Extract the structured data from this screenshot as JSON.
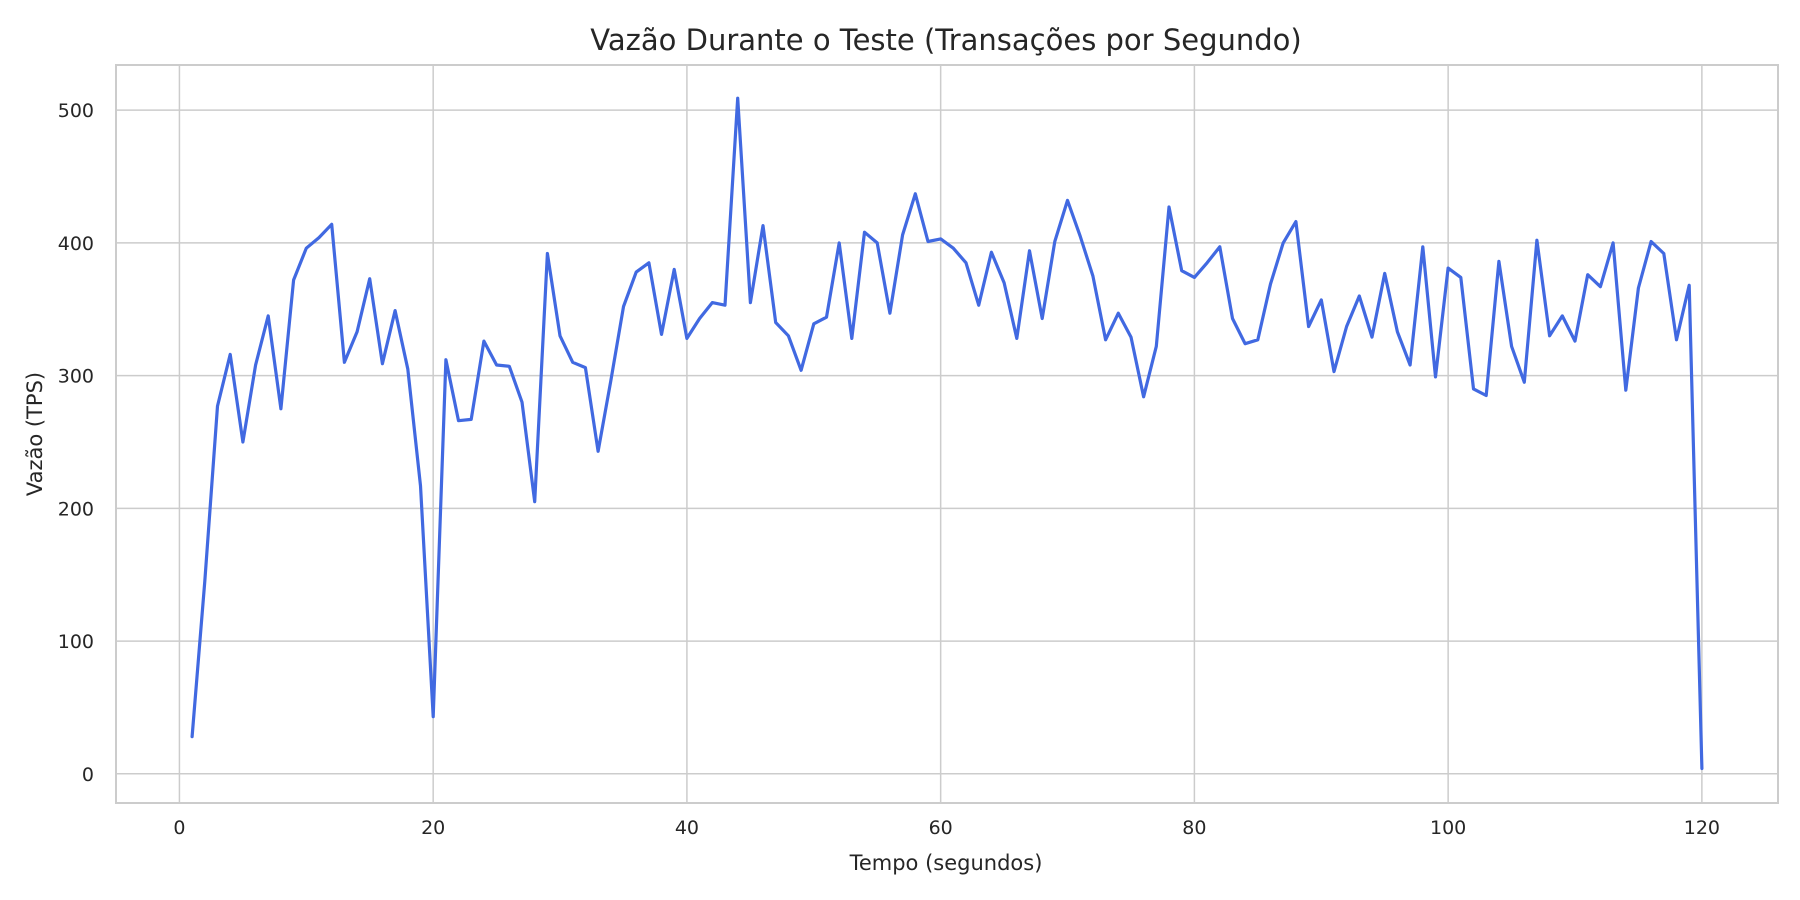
{
  "chart_data": {
    "type": "line",
    "title": "Vazão Durante o Teste (Transações por Segundo)",
    "xlabel": "Tempo (segundos)",
    "ylabel": "Vazão (TPS)",
    "xlim": [
      -5,
      126
    ],
    "ylim": [
      -22,
      534
    ],
    "x_ticks": [
      0,
      20,
      40,
      60,
      80,
      100,
      120
    ],
    "y_ticks": [
      0,
      100,
      200,
      300,
      400,
      500
    ],
    "grid": true,
    "color": "#4169e1",
    "x": [
      1,
      2,
      3,
      4,
      5,
      6,
      7,
      8,
      9,
      10,
      11,
      12,
      13,
      14,
      15,
      16,
      17,
      18,
      19,
      20,
      21,
      22,
      23,
      24,
      25,
      26,
      27,
      28,
      29,
      30,
      31,
      32,
      33,
      34,
      35,
      36,
      37,
      38,
      39,
      40,
      41,
      42,
      43,
      44,
      45,
      46,
      47,
      48,
      49,
      50,
      51,
      52,
      53,
      54,
      55,
      56,
      57,
      58,
      59,
      60,
      61,
      62,
      63,
      64,
      65,
      66,
      67,
      68,
      69,
      70,
      71,
      72,
      73,
      74,
      75,
      76,
      77,
      78,
      79,
      80,
      81,
      82,
      83,
      84,
      85,
      86,
      87,
      88,
      89,
      90,
      91,
      92,
      93,
      94,
      95,
      96,
      97,
      98,
      99,
      100,
      101,
      102,
      103,
      104,
      105,
      106,
      107,
      108,
      109,
      110,
      111,
      112,
      113,
      114,
      115,
      116,
      117,
      118,
      119,
      120
    ],
    "y": [
      28,
      145,
      277,
      316,
      250,
      308,
      345,
      275,
      372,
      396,
      404,
      414,
      310,
      333,
      373,
      309,
      349,
      305,
      217,
      43,
      312,
      266,
      267,
      326,
      308,
      307,
      280,
      205,
      392,
      330,
      310,
      306,
      243,
      296,
      352,
      378,
      385,
      331,
      380,
      328,
      343,
      355,
      353,
      509,
      355,
      413,
      340,
      330,
      304,
      339,
      344,
      400,
      328,
      408,
      400,
      347,
      406,
      437,
      401,
      403,
      396,
      385,
      353,
      393,
      370,
      328,
      394,
      343,
      401,
      432,
      405,
      375,
      327,
      347,
      329,
      284,
      322,
      427,
      379,
      374,
      385,
      397,
      343,
      324,
      327,
      369,
      400,
      416,
      337,
      357,
      303,
      337,
      360,
      329,
      377,
      333,
      308,
      397,
      299,
      381,
      374,
      290,
      285,
      386,
      322,
      295,
      402,
      330,
      345,
      326,
      376,
      367,
      400,
      289,
      366,
      401,
      392,
      327,
      368,
      4
    ]
  }
}
